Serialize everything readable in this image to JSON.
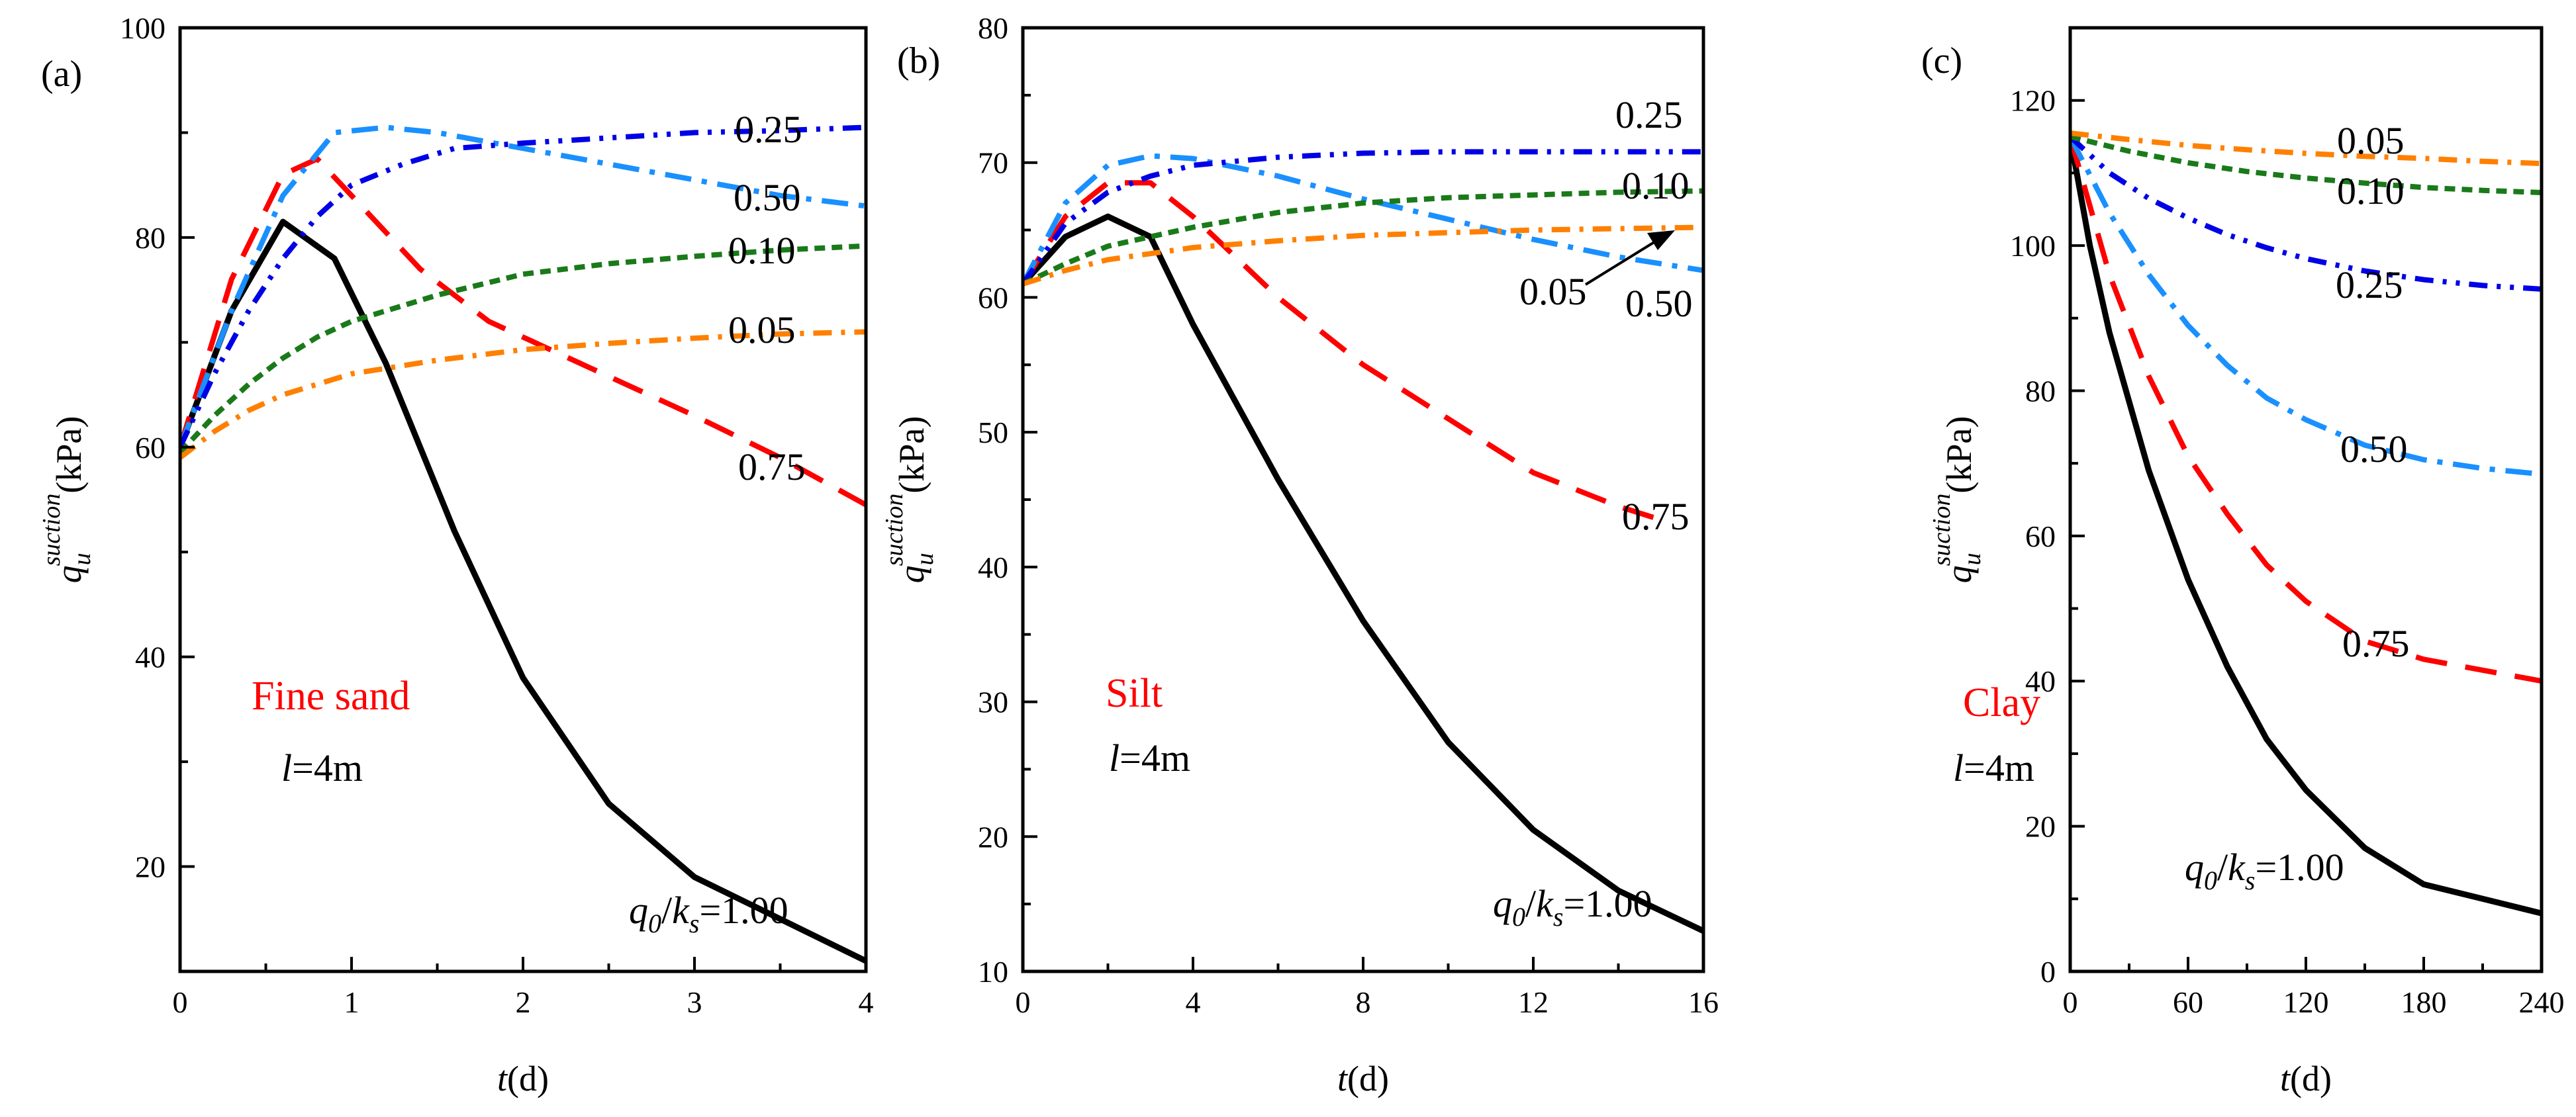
{
  "figure": {
    "x_label_var": "t",
    "x_label_unit": "(d)",
    "y_label_var": "q",
    "y_label_sub": "u",
    "y_label_sup": "suction",
    "y_label_unit": "(kPa)",
    "length_var": "l",
    "length_value": "=4m",
    "q_ratio_num": "q",
    "q_ratio_num_sub": "0",
    "q_ratio_slash": "/",
    "q_ratio_den": "k",
    "q_ratio_den_sub": "s"
  },
  "chart_data": [
    {
      "type": "line",
      "panel_label": "(a)",
      "soil": "Fine sand",
      "xlim": [
        0,
        4
      ],
      "ylim": [
        10,
        100
      ],
      "xticks": [
        0,
        1,
        2,
        3,
        4
      ],
      "yticks": [
        20,
        40,
        60,
        80,
        100
      ],
      "series": [
        {
          "name": "1.00",
          "label": "=1.00",
          "color": "#000000",
          "x": [
            0,
            0.3,
            0.6,
            0.9,
            1.2,
            1.6,
            2.0,
            2.5,
            3.0,
            3.5,
            4.0
          ],
          "y": [
            60,
            73,
            81.5,
            78,
            68,
            52,
            38,
            26,
            19,
            15,
            11
          ]
        },
        {
          "name": "0.75",
          "label": "0.75",
          "color": "#ff0000",
          "x": [
            0,
            0.3,
            0.6,
            0.8,
            1.0,
            1.4,
            1.8,
            2.2,
            2.6,
            3.0,
            3.5,
            4.0
          ],
          "y": [
            60,
            76,
            86,
            87.5,
            84,
            77,
            72,
            69,
            66,
            63,
            59,
            54.5
          ]
        },
        {
          "name": "0.50",
          "label": "0.50",
          "color": "#1a90ff",
          "x": [
            0,
            0.3,
            0.6,
            0.9,
            1.2,
            1.5,
            2.0,
            2.5,
            3.0,
            3.5,
            4.0
          ],
          "y": [
            60,
            73,
            84,
            90,
            90.5,
            90,
            88.5,
            87,
            85.5,
            84,
            83
          ]
        },
        {
          "name": "0.25",
          "label": "0.25",
          "color": "#0000e6",
          "x": [
            0,
            0.2,
            0.4,
            0.6,
            0.8,
            1.0,
            1.3,
            1.6,
            2.0,
            2.5,
            3.0,
            3.5,
            4.0
          ],
          "y": [
            60,
            67,
            73,
            78,
            82,
            85,
            87,
            88.5,
            89,
            89.5,
            90,
            90.2,
            90.5
          ]
        },
        {
          "name": "0.10",
          "label": "0.10",
          "color": "#1a7a1a",
          "x": [
            0,
            0.2,
            0.4,
            0.6,
            0.8,
            1.0,
            1.5,
            2.0,
            2.5,
            3.0,
            3.5,
            4.0
          ],
          "y": [
            59.5,
            63,
            66,
            68.5,
            70.5,
            72,
            74.5,
            76.5,
            77.5,
            78.2,
            78.8,
            79.2
          ]
        },
        {
          "name": "0.05",
          "label": "0.05",
          "color": "#ff8000",
          "x": [
            0,
            0.2,
            0.4,
            0.6,
            0.8,
            1.0,
            1.5,
            2.0,
            2.5,
            3.0,
            3.5,
            4.0
          ],
          "y": [
            59,
            61.5,
            63.5,
            65,
            66,
            67,
            68.3,
            69.3,
            69.9,
            70.4,
            70.8,
            71
          ]
        }
      ]
    },
    {
      "type": "line",
      "panel_label": "(b)",
      "soil": "Silt",
      "xlim": [
        0,
        16
      ],
      "ylim": [
        10,
        80
      ],
      "xticks": [
        0,
        4,
        8,
        12,
        16
      ],
      "yticks": [
        10,
        20,
        30,
        40,
        50,
        60,
        70,
        80
      ],
      "series": [
        {
          "name": "1.00",
          "label": "=1.00",
          "color": "#000000",
          "x": [
            0,
            1,
            2,
            3,
            4,
            6,
            8,
            10,
            12,
            14,
            16
          ],
          "y": [
            61,
            64.5,
            66,
            64.5,
            58,
            46.5,
            36,
            27,
            20.5,
            16,
            13
          ]
        },
        {
          "name": "0.75",
          "label": "0.75",
          "color": "#ff0000",
          "x": [
            0,
            1,
            2,
            3,
            4,
            6,
            8,
            10,
            12,
            14,
            15
          ],
          "y": [
            61,
            66,
            68.5,
            68.5,
            66,
            60,
            55,
            51,
            47,
            44.5,
            43.5
          ]
        },
        {
          "name": "0.50",
          "label": "0.50",
          "color": "#1a90ff",
          "x": [
            0,
            1,
            2,
            3,
            4,
            6,
            8,
            10,
            12,
            14,
            16
          ],
          "y": [
            61,
            67,
            69.8,
            70.5,
            70.3,
            69,
            67.3,
            65.8,
            64.3,
            63,
            62
          ]
        },
        {
          "name": "0.25",
          "label": "0.25",
          "color": "#0000e6",
          "x": [
            0,
            1,
            2,
            3,
            4,
            6,
            8,
            10,
            12,
            14,
            16
          ],
          "y": [
            61,
            65.5,
            67.8,
            69,
            69.8,
            70.4,
            70.7,
            70.8,
            70.8,
            70.8,
            70.8
          ]
        },
        {
          "name": "0.10",
          "label": "0.10",
          "color": "#1a7a1a",
          "x": [
            0,
            1,
            2,
            4,
            6,
            8,
            10,
            12,
            14,
            16
          ],
          "y": [
            61,
            62.5,
            63.8,
            65.2,
            66.3,
            67,
            67.4,
            67.6,
            67.8,
            67.9
          ]
        },
        {
          "name": "0.05",
          "label": "0.05",
          "color": "#ff8000",
          "x": [
            0,
            1,
            2,
            4,
            6,
            8,
            10,
            12,
            14,
            16
          ],
          "y": [
            61,
            62,
            62.8,
            63.7,
            64.2,
            64.6,
            64.8,
            65,
            65.1,
            65.2
          ]
        }
      ]
    },
    {
      "type": "line",
      "panel_label": "(c)",
      "soil": "Clay",
      "xlim": [
        0,
        240
      ],
      "ylim": [
        0,
        130
      ],
      "xticks": [
        0,
        60,
        120,
        180,
        240
      ],
      "yticks": [
        0,
        20,
        40,
        60,
        80,
        100,
        120
      ],
      "series": [
        {
          "name": "1.00",
          "label": "=1.00",
          "color": "#000000",
          "x": [
            0,
            10,
            20,
            40,
            60,
            80,
            100,
            120,
            150,
            180,
            210,
            240
          ],
          "y": [
            115,
            100,
            88,
            69,
            54,
            42,
            32,
            25,
            17,
            12,
            10,
            8
          ]
        },
        {
          "name": "0.75",
          "label": "0.75",
          "color": "#ff0000",
          "x": [
            0,
            20,
            40,
            60,
            80,
            100,
            120,
            150,
            180,
            210,
            240
          ],
          "y": [
            115,
            96,
            82,
            71,
            63,
            56,
            51,
            45.5,
            43,
            41.5,
            40
          ]
        },
        {
          "name": "0.50",
          "label": "0.50",
          "color": "#1a90ff",
          "x": [
            0,
            20,
            40,
            60,
            80,
            100,
            120,
            150,
            180,
            210,
            240
          ],
          "y": [
            115,
            104.5,
            96,
            89,
            83.5,
            79,
            76,
            72.5,
            70.5,
            69.3,
            68.5
          ]
        },
        {
          "name": "0.25",
          "label": "0.25",
          "color": "#0000e6",
          "x": [
            0,
            20,
            40,
            60,
            80,
            100,
            120,
            150,
            180,
            210,
            240
          ],
          "y": [
            115,
            110,
            106.5,
            103.8,
            101.5,
            99.7,
            98.2,
            96.5,
            95.3,
            94.5,
            94
          ]
        },
        {
          "name": "0.10",
          "label": "0.10",
          "color": "#1a7a1a",
          "x": [
            0,
            30,
            60,
            90,
            120,
            150,
            180,
            210,
            240
          ],
          "y": [
            115,
            113,
            111.4,
            110.2,
            109.3,
            108.6,
            108,
            107.6,
            107.3
          ]
        },
        {
          "name": "0.05",
          "label": "0.05",
          "color": "#ff8000",
          "x": [
            0,
            30,
            60,
            90,
            120,
            150,
            180,
            210,
            240
          ],
          "y": [
            115.5,
            114.6,
            113.8,
            113.2,
            112.7,
            112.3,
            112,
            111.6,
            111.3
          ]
        }
      ]
    }
  ]
}
